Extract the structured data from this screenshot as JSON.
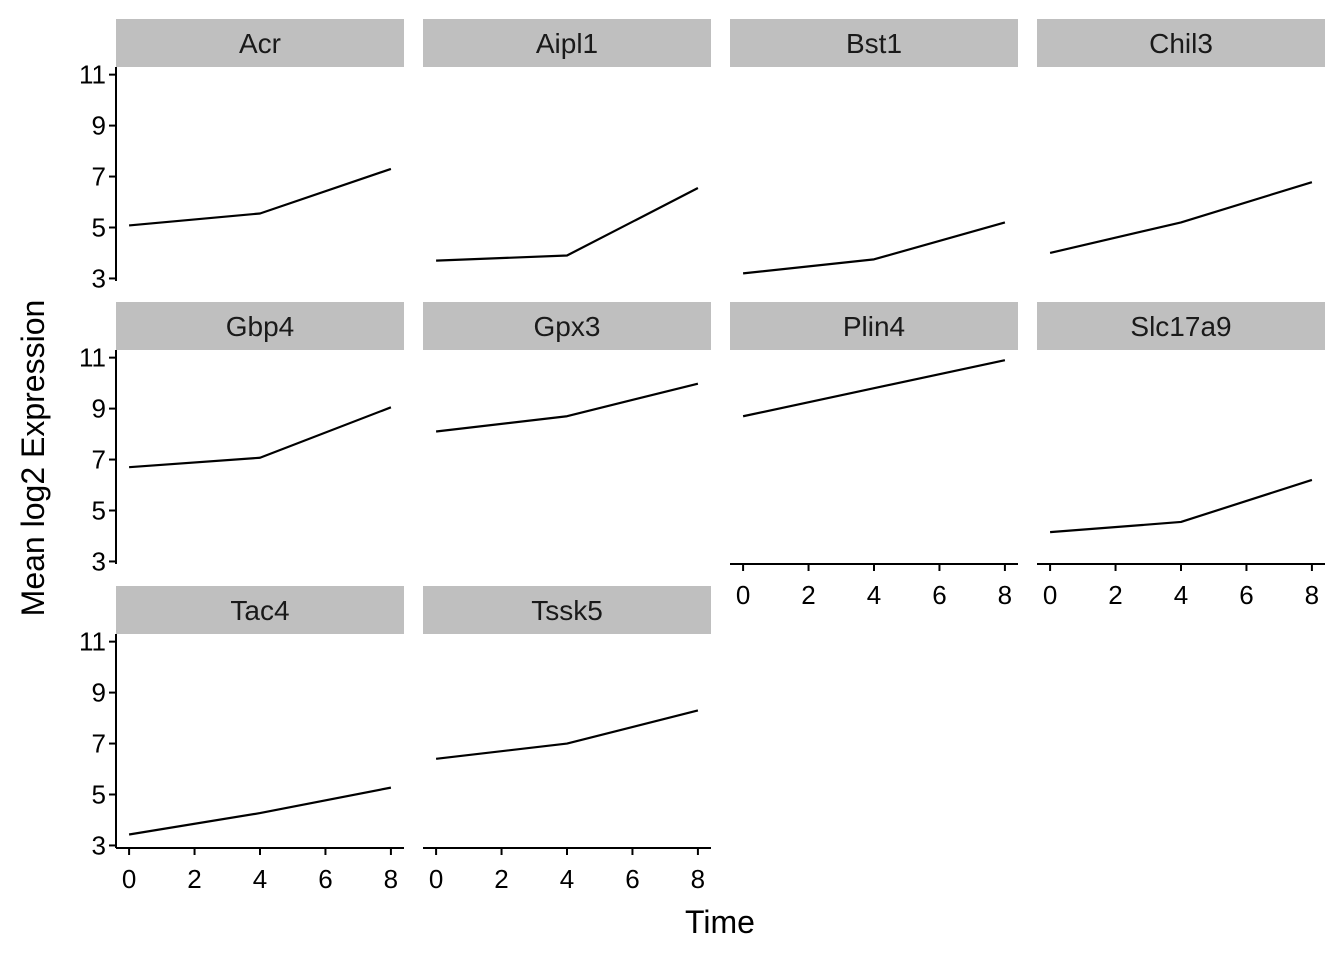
{
  "chart_data": {
    "type": "line",
    "layout": "facet-wrap",
    "ncol": 4,
    "xlabel": "Time",
    "ylabel": "Mean log2 Expression",
    "x": [
      0,
      4,
      8
    ],
    "xlim": [
      -0.4,
      8.4
    ],
    "ylim": [
      2.9,
      11.3
    ],
    "xticks": [
      0,
      2,
      4,
      6,
      8
    ],
    "yticks": [
      3,
      5,
      7,
      9,
      11
    ],
    "line_color": "#000000",
    "strip_color": "#bfbfbf",
    "panels": [
      {
        "name": "Acr",
        "values": [
          5.08,
          5.55,
          7.3
        ]
      },
      {
        "name": "Aipl1",
        "values": [
          3.7,
          3.9,
          6.55
        ]
      },
      {
        "name": "Bst1",
        "values": [
          3.2,
          3.75,
          5.2
        ]
      },
      {
        "name": "Chil3",
        "values": [
          4.0,
          5.2,
          6.78
        ]
      },
      {
        "name": "Gbp4",
        "values": [
          6.7,
          7.07,
          9.05
        ]
      },
      {
        "name": "Gpx3",
        "values": [
          8.1,
          8.7,
          9.98
        ]
      },
      {
        "name": "Plin4",
        "values": [
          8.7,
          9.8,
          10.9
        ]
      },
      {
        "name": "Slc17a9",
        "values": [
          4.15,
          4.55,
          6.2
        ]
      },
      {
        "name": "Tac4",
        "values": [
          3.43,
          4.27,
          5.27
        ]
      },
      {
        "name": "Tssk5",
        "values": [
          6.4,
          7.0,
          8.3
        ]
      }
    ]
  }
}
